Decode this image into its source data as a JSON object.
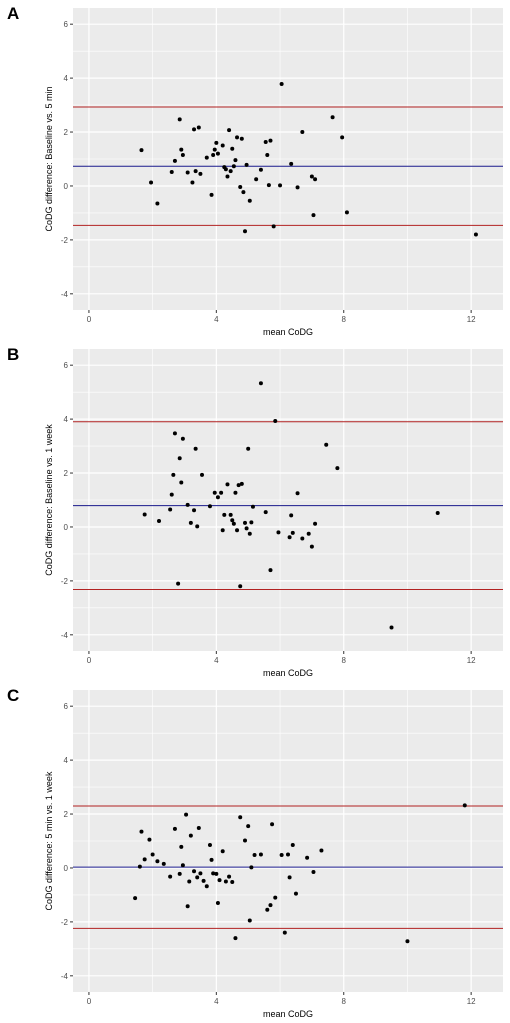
{
  "chart_data": [
    {
      "type": "scatter",
      "panel_label": "A",
      "xlabel": "mean CoDG",
      "ylabel": "CoDG difference: Baseline vs. 5 min",
      "xlim": [
        -0.5,
        13.0
      ],
      "ylim": [
        -4.6,
        6.6
      ],
      "xticks": [
        0,
        4,
        8,
        12
      ],
      "yticks": [
        -4,
        -2,
        0,
        2,
        4,
        6
      ],
      "grid": true,
      "colors": {
        "background": "#ebebeb",
        "grid": "#ffffff",
        "mean_line": "#1a1a8c",
        "limit_line": "#b22222",
        "point": "#000000"
      },
      "mean_line": 0.73,
      "limits_of_agreement": [
        2.93,
        -1.46
      ],
      "points": [
        [
          1.65,
          1.33
        ],
        [
          1.95,
          0.13
        ],
        [
          2.15,
          -0.65
        ],
        [
          2.6,
          0.52
        ],
        [
          2.7,
          0.93
        ],
        [
          2.85,
          2.47
        ],
        [
          2.9,
          1.35
        ],
        [
          2.95,
          1.15
        ],
        [
          3.1,
          0.5
        ],
        [
          3.25,
          0.13
        ],
        [
          3.3,
          2.1
        ],
        [
          3.35,
          0.55
        ],
        [
          3.45,
          2.17
        ],
        [
          3.5,
          0.45
        ],
        [
          3.7,
          1.05
        ],
        [
          3.85,
          -0.33
        ],
        [
          3.9,
          1.15
        ],
        [
          3.95,
          1.35
        ],
        [
          4.0,
          1.6
        ],
        [
          4.05,
          1.2
        ],
        [
          4.2,
          1.5
        ],
        [
          4.25,
          0.7
        ],
        [
          4.3,
          0.62
        ],
        [
          4.35,
          0.35
        ],
        [
          4.4,
          2.07
        ],
        [
          4.45,
          0.55
        ],
        [
          4.5,
          1.38
        ],
        [
          4.55,
          0.73
        ],
        [
          4.6,
          0.96
        ],
        [
          4.65,
          1.8
        ],
        [
          4.75,
          -0.04
        ],
        [
          4.8,
          1.75
        ],
        [
          4.85,
          -0.23
        ],
        [
          4.9,
          -1.68
        ],
        [
          4.95,
          0.78
        ],
        [
          5.05,
          -0.55
        ],
        [
          5.25,
          0.25
        ],
        [
          5.4,
          0.6
        ],
        [
          5.55,
          1.63
        ],
        [
          5.6,
          1.15
        ],
        [
          5.65,
          0.03
        ],
        [
          5.7,
          1.68
        ],
        [
          5.8,
          -1.5
        ],
        [
          6.0,
          0.02
        ],
        [
          6.05,
          3.78
        ],
        [
          6.35,
          0.82
        ],
        [
          6.55,
          -0.05
        ],
        [
          6.7,
          2.0
        ],
        [
          7.0,
          0.35
        ],
        [
          7.05,
          -1.08
        ],
        [
          7.1,
          0.25
        ],
        [
          7.65,
          2.55
        ],
        [
          7.95,
          1.8
        ],
        [
          8.1,
          -0.98
        ],
        [
          12.15,
          -1.8
        ]
      ]
    },
    {
      "type": "scatter",
      "panel_label": "B",
      "xlabel": "mean CoDG",
      "ylabel": "CoDG difference: Baseline vs. 1 week",
      "xlim": [
        -0.5,
        13.0
      ],
      "ylim": [
        -4.6,
        6.6
      ],
      "xticks": [
        0,
        4,
        8,
        12
      ],
      "yticks": [
        -4,
        -2,
        0,
        2,
        4,
        6
      ],
      "grid": true,
      "colors": {
        "background": "#ebebeb",
        "grid": "#ffffff",
        "mean_line": "#1a1a8c",
        "limit_line": "#b22222",
        "point": "#000000"
      },
      "mean_line": 0.79,
      "limits_of_agreement": [
        3.9,
        -2.32
      ],
      "points": [
        [
          1.75,
          0.46
        ],
        [
          2.2,
          0.22
        ],
        [
          2.55,
          0.65
        ],
        [
          2.6,
          1.2
        ],
        [
          2.65,
          1.93
        ],
        [
          2.7,
          3.47
        ],
        [
          2.8,
          -2.1
        ],
        [
          2.85,
          2.55
        ],
        [
          2.9,
          1.65
        ],
        [
          2.95,
          3.27
        ],
        [
          3.1,
          0.82
        ],
        [
          3.2,
          0.15
        ],
        [
          3.3,
          0.62
        ],
        [
          3.35,
          2.9
        ],
        [
          3.4,
          0.02
        ],
        [
          3.55,
          1.93
        ],
        [
          3.8,
          0.77
        ],
        [
          3.95,
          1.27
        ],
        [
          4.05,
          1.1
        ],
        [
          4.15,
          1.27
        ],
        [
          4.2,
          -0.12
        ],
        [
          4.25,
          0.45
        ],
        [
          4.35,
          1.58
        ],
        [
          4.45,
          0.45
        ],
        [
          4.5,
          0.25
        ],
        [
          4.55,
          0.12
        ],
        [
          4.6,
          1.27
        ],
        [
          4.65,
          -0.12
        ],
        [
          4.7,
          1.55
        ],
        [
          4.75,
          -2.2
        ],
        [
          4.8,
          1.6
        ],
        [
          4.9,
          0.15
        ],
        [
          4.95,
          -0.05
        ],
        [
          5.0,
          2.9
        ],
        [
          5.05,
          -0.25
        ],
        [
          5.1,
          0.17
        ],
        [
          5.15,
          0.75
        ],
        [
          5.4,
          5.33
        ],
        [
          5.55,
          0.55
        ],
        [
          5.7,
          -1.6
        ],
        [
          5.85,
          3.93
        ],
        [
          5.95,
          -0.2
        ],
        [
          6.3,
          -0.38
        ],
        [
          6.35,
          0.43
        ],
        [
          6.4,
          -0.22
        ],
        [
          6.55,
          1.25
        ],
        [
          6.7,
          -0.43
        ],
        [
          6.9,
          -0.25
        ],
        [
          7.0,
          -0.73
        ],
        [
          7.1,
          0.12
        ],
        [
          7.45,
          3.05
        ],
        [
          7.8,
          2.18
        ],
        [
          9.5,
          -3.73
        ],
        [
          10.95,
          0.52
        ]
      ]
    },
    {
      "type": "scatter",
      "panel_label": "C",
      "xlabel": "mean CoDG",
      "ylabel": "CoDG difference: 5 min vs. 1 week",
      "xlim": [
        -0.5,
        13.0
      ],
      "ylim": [
        -4.6,
        6.6
      ],
      "xticks": [
        0,
        4,
        8,
        12
      ],
      "yticks": [
        -4,
        -2,
        0,
        2,
        4,
        6
      ],
      "grid": true,
      "colors": {
        "background": "#ebebeb",
        "grid": "#ffffff",
        "mean_line": "#1a1a8c",
        "limit_line": "#b22222",
        "point": "#000000"
      },
      "mean_line": 0.03,
      "limits_of_agreement": [
        2.3,
        -2.24
      ],
      "points": [
        [
          1.45,
          -1.12
        ],
        [
          1.6,
          0.05
        ],
        [
          1.65,
          1.35
        ],
        [
          1.75,
          0.32
        ],
        [
          1.9,
          1.05
        ],
        [
          2.0,
          0.5
        ],
        [
          2.15,
          0.25
        ],
        [
          2.35,
          0.15
        ],
        [
          2.55,
          -0.32
        ],
        [
          2.7,
          1.45
        ],
        [
          2.85,
          -0.22
        ],
        [
          2.9,
          0.78
        ],
        [
          2.95,
          0.1
        ],
        [
          3.05,
          1.98
        ],
        [
          3.1,
          -1.42
        ],
        [
          3.15,
          -0.5
        ],
        [
          3.2,
          1.2
        ],
        [
          3.3,
          -0.12
        ],
        [
          3.4,
          -0.35
        ],
        [
          3.45,
          1.48
        ],
        [
          3.5,
          -0.2
        ],
        [
          3.6,
          -0.48
        ],
        [
          3.7,
          -0.68
        ],
        [
          3.8,
          0.85
        ],
        [
          3.85,
          0.3
        ],
        [
          3.9,
          -0.2
        ],
        [
          4.0,
          -0.22
        ],
        [
          4.05,
          -1.3
        ],
        [
          4.1,
          -0.45
        ],
        [
          4.2,
          0.62
        ],
        [
          4.3,
          -0.5
        ],
        [
          4.4,
          -0.32
        ],
        [
          4.5,
          -0.52
        ],
        [
          4.6,
          -2.6
        ],
        [
          4.75,
          1.88
        ],
        [
          4.9,
          1.02
        ],
        [
          5.0,
          1.55
        ],
        [
          5.05,
          -1.95
        ],
        [
          5.1,
          0.02
        ],
        [
          5.2,
          0.48
        ],
        [
          5.4,
          0.5
        ],
        [
          5.6,
          -1.55
        ],
        [
          5.7,
          -1.38
        ],
        [
          5.75,
          1.62
        ],
        [
          5.85,
          -1.1
        ],
        [
          6.05,
          0.48
        ],
        [
          6.15,
          -2.4
        ],
        [
          6.25,
          0.5
        ],
        [
          6.3,
          -0.35
        ],
        [
          6.4,
          0.85
        ],
        [
          6.5,
          -0.95
        ],
        [
          6.85,
          0.38
        ],
        [
          7.05,
          -0.15
        ],
        [
          7.3,
          0.65
        ],
        [
          10.0,
          -2.72
        ],
        [
          11.8,
          2.32
        ]
      ]
    }
  ]
}
